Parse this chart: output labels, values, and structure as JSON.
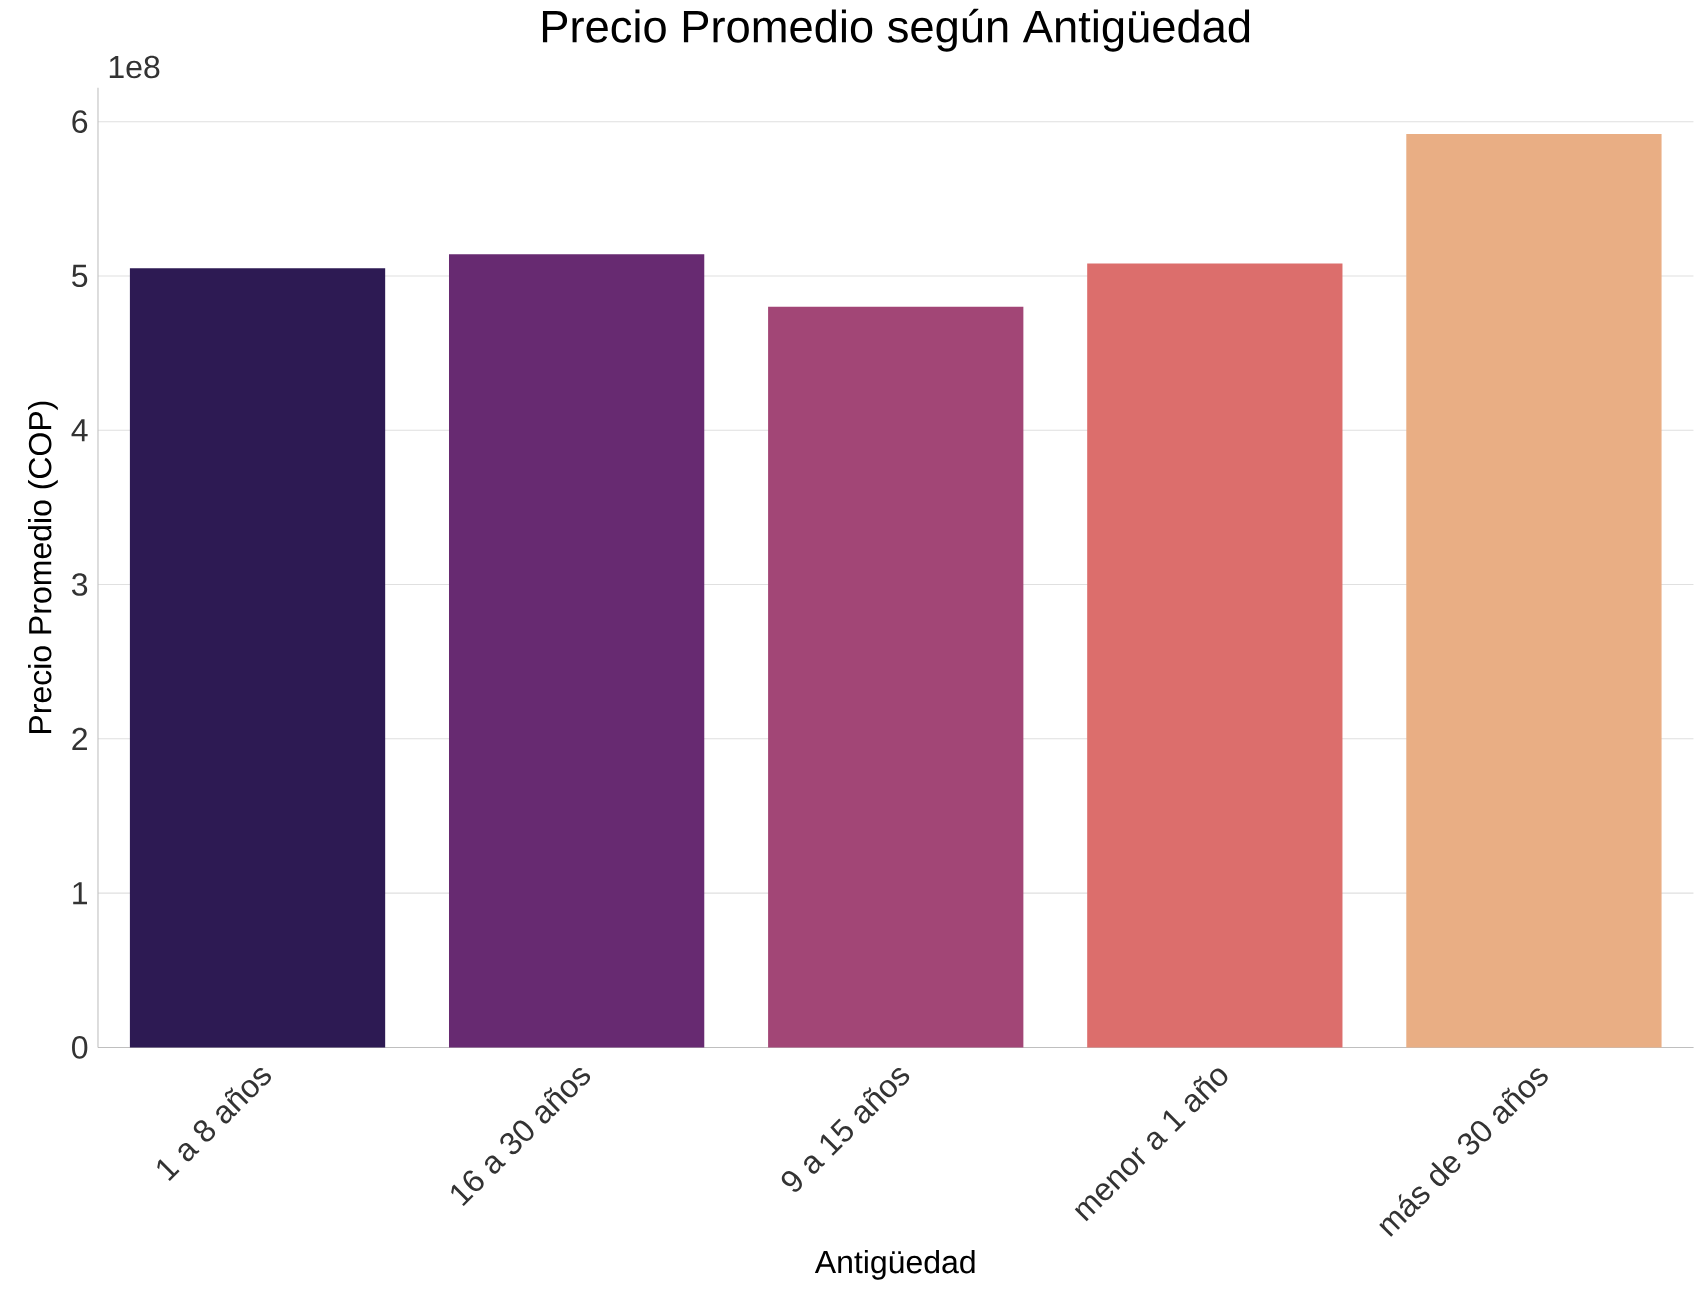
{
  "chart_data": {
    "type": "bar",
    "title": "Precio Promedio según Antigüedad",
    "xlabel": "Antigüedad",
    "ylabel": "Precio Promedio (COP)",
    "categories": [
      "1 a 8 años",
      "16 a 30 años",
      "9 a 15 años",
      "menor a 1 año",
      "más de 30 años"
    ],
    "values": [
      5.05,
      5.14,
      4.8,
      5.08,
      5.92
    ],
    "colors": [
      "#2d1a53",
      "#672a71",
      "#a24676",
      "#dc6e6c",
      "#e9ae84"
    ],
    "ylim": [
      0,
      6.22
    ],
    "yticks": [
      0,
      1,
      2,
      3,
      4,
      5,
      6
    ],
    "grid": "y",
    "annotations": [
      "1e8"
    ]
  }
}
